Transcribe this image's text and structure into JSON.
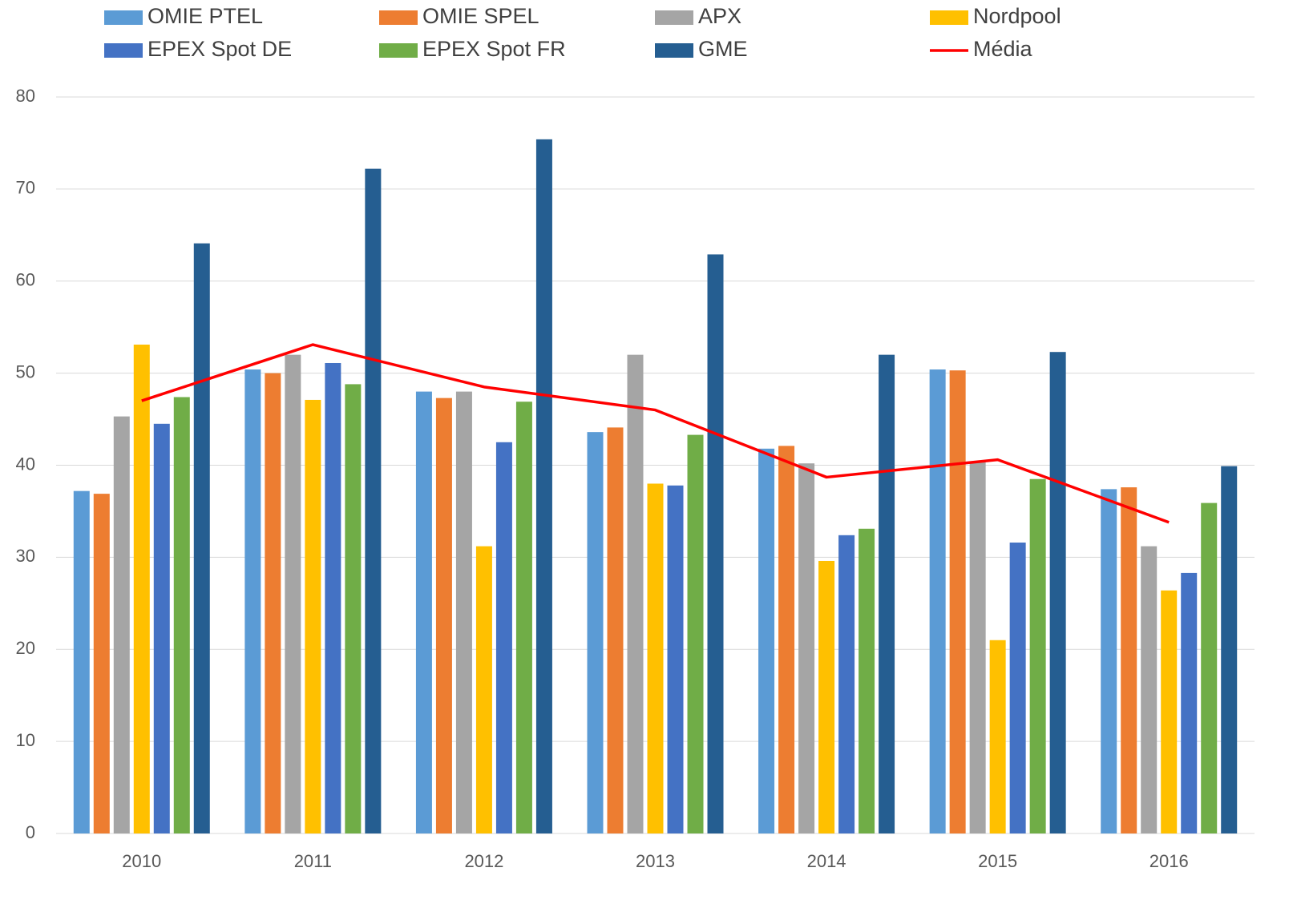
{
  "chart_data": {
    "type": "bar",
    "categories": [
      "2010",
      "2011",
      "2012",
      "2013",
      "2014",
      "2015",
      "2016"
    ],
    "series": [
      {
        "name": "OMIE PTEL",
        "color": "#5b9bd5",
        "values": [
          37.2,
          50.4,
          48.0,
          43.6,
          41.8,
          50.4,
          37.4
        ]
      },
      {
        "name": "OMIE SPEL",
        "color": "#ed7d31",
        "values": [
          36.9,
          50.0,
          47.3,
          44.1,
          42.1,
          50.3,
          37.6
        ]
      },
      {
        "name": "APX",
        "color": "#a5a5a5",
        "values": [
          45.3,
          52.0,
          48.0,
          52.0,
          40.2,
          40.4,
          31.2
        ]
      },
      {
        "name": "Nordpool",
        "color": "#ffc000",
        "values": [
          53.1,
          47.1,
          31.2,
          38.0,
          29.6,
          21.0,
          26.4
        ]
      },
      {
        "name": "EPEX Spot DE",
        "color": "#4472c4",
        "values": [
          44.5,
          51.1,
          42.5,
          37.8,
          32.4,
          31.6,
          28.3
        ]
      },
      {
        "name": "EPEX Spot FR",
        "color": "#70ad47",
        "values": [
          47.4,
          48.8,
          46.9,
          43.3,
          33.1,
          38.5,
          35.9
        ]
      },
      {
        "name": "GME",
        "color": "#255e91",
        "values": [
          64.1,
          72.2,
          75.4,
          62.9,
          52.0,
          52.3,
          39.9
        ]
      },
      {
        "name": "Média",
        "color": "#ff0000",
        "type": "line",
        "values": [
          47.0,
          53.1,
          48.5,
          46.0,
          38.7,
          40.6,
          33.8
        ]
      }
    ],
    "ylim": [
      0,
      80
    ],
    "yticks": [
      0,
      10,
      20,
      30,
      40,
      50,
      60,
      70,
      80
    ],
    "grid": true,
    "legend": "top"
  }
}
